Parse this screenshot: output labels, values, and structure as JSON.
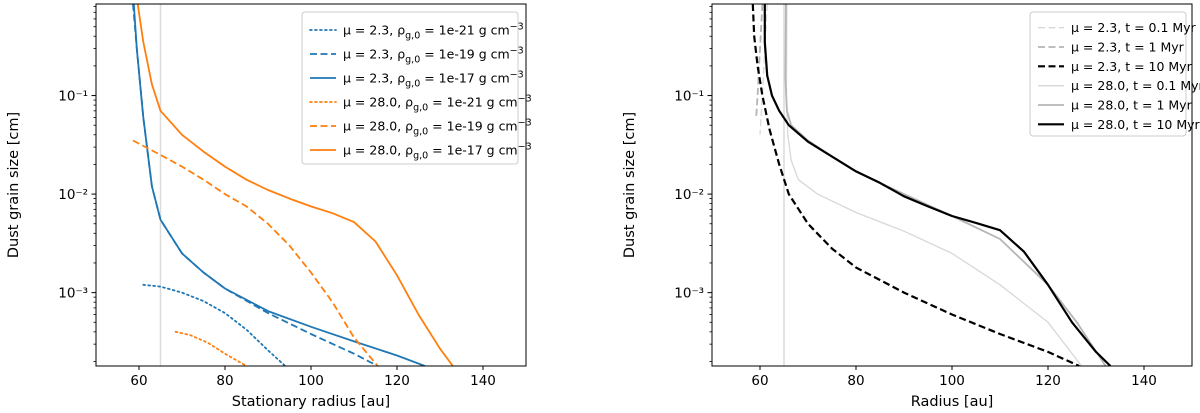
{
  "chart_data": [
    {
      "type": "line",
      "id": "left",
      "xlabel": "Stationary radius [au]",
      "ylabel": "Dust grain size [cm]",
      "xlim": [
        50,
        150
      ],
      "ylim": [
        0.00018,
        0.85
      ],
      "yscale": "log",
      "xticks": [
        60,
        80,
        100,
        120,
        140
      ],
      "xtick_labels": [
        "60",
        "80",
        "100",
        "120",
        "140"
      ],
      "yticks": [
        0.001,
        0.01,
        0.1
      ],
      "ytick_labels": [
        "10⁻³",
        "10⁻²",
        "10⁻¹"
      ],
      "vline": {
        "x": 65,
        "color": "#dcdcdc"
      },
      "legend_position": "top-right",
      "series": [
        {
          "name": "μ = 2.3, ρg,0 = 1e-21 g cm⁻³",
          "color": "#1f77b4",
          "dash": "dotted",
          "width": 1.8,
          "x": [
            61,
            65,
            70,
            75,
            80,
            85,
            90,
            94
          ],
          "y": [
            0.0012,
            0.00115,
            0.001,
            0.00082,
            0.00062,
            0.00042,
            0.00026,
            0.00018
          ]
        },
        {
          "name": "μ = 2.3, ρg,0 = 1e-19 g cm⁻³",
          "color": "#1f77b4",
          "dash": "dashed",
          "width": 1.8,
          "x": [
            58.6,
            59.5,
            61,
            63,
            65,
            70,
            75,
            80,
            90,
            100,
            110,
            115.5
          ],
          "y": [
            0.85,
            0.3,
            0.06,
            0.012,
            0.0055,
            0.0025,
            0.0016,
            0.0011,
            0.00062,
            0.00038,
            0.00024,
            0.00018
          ]
        },
        {
          "name": "μ = 2.3, ρg,0 = 1e-17 g cm⁻³",
          "color": "#1f77b4",
          "dash": "solid",
          "width": 1.8,
          "x": [
            58.8,
            59.5,
            61,
            63,
            65,
            70,
            75,
            80,
            90,
            100,
            110,
            120,
            126.5
          ],
          "y": [
            0.85,
            0.3,
            0.06,
            0.012,
            0.0055,
            0.0025,
            0.0016,
            0.0011,
            0.00065,
            0.00045,
            0.00032,
            0.00023,
            0.00018
          ]
        },
        {
          "name": "μ = 28.0, ρg,0 = 1e-21 g cm⁻³",
          "color": "#ff7f0e",
          "dash": "dotted",
          "width": 1.8,
          "x": [
            68.5,
            72,
            76,
            80,
            85
          ],
          "y": [
            0.0004,
            0.00037,
            0.00031,
            0.00024,
            0.00018
          ]
        },
        {
          "name": "μ = 28.0, ρg,0 = 1e-19 g cm⁻³",
          "color": "#ff7f0e",
          "dash": "dashed",
          "width": 1.8,
          "x": [
            58.6,
            65,
            70,
            75,
            80,
            85,
            90,
            95,
            100,
            105,
            110,
            115.5
          ],
          "y": [
            0.035,
            0.025,
            0.019,
            0.014,
            0.01,
            0.0075,
            0.005,
            0.003,
            0.0016,
            0.0008,
            0.00035,
            0.00018
          ]
        },
        {
          "name": "μ = 28.0, ρg,0 = 1e-17 g cm⁻³",
          "color": "#ff7f0e",
          "dash": "solid",
          "width": 1.8,
          "x": [
            59.7,
            61,
            63,
            65,
            70,
            75,
            80,
            85,
            90,
            95,
            100,
            105,
            110,
            115,
            120,
            125,
            130,
            133
          ],
          "y": [
            0.85,
            0.35,
            0.13,
            0.07,
            0.04,
            0.027,
            0.019,
            0.014,
            0.011,
            0.009,
            0.0075,
            0.0064,
            0.0052,
            0.0033,
            0.0015,
            0.0006,
            0.00027,
            0.00018
          ]
        }
      ]
    },
    {
      "type": "line",
      "id": "right",
      "xlabel": "Radius [au]",
      "ylabel": "Dust grain size [cm]",
      "xlim": [
        50,
        150
      ],
      "ylim": [
        0.00018,
        0.85
      ],
      "yscale": "log",
      "xticks": [
        60,
        80,
        100,
        120,
        140
      ],
      "xtick_labels": [
        "60",
        "80",
        "100",
        "120",
        "140"
      ],
      "yticks": [
        0.001,
        0.01,
        0.1
      ],
      "ytick_labels": [
        "10⁻³",
        "10⁻²",
        "10⁻¹"
      ],
      "vline": {
        "x": 65,
        "color": "#dcdcdc"
      },
      "legend_position": "top-right",
      "series": [
        {
          "name": "μ = 2.3, t = 0.1 Myr",
          "color": "#d8d8d8",
          "dash": "dashed",
          "width": 1.3,
          "x": [
            61.5,
            61,
            60.5,
            60.2,
            60
          ],
          "y": [
            0.85,
            0.3,
            0.1,
            0.06,
            0.04
          ]
        },
        {
          "name": "μ = 2.3, t = 1 Myr",
          "color": "#b5b5b5",
          "dash": "dashed",
          "width": 1.8,
          "x": [
            60.5,
            60,
            59.5,
            59.2
          ],
          "y": [
            0.85,
            0.3,
            0.1,
            0.06
          ]
        },
        {
          "name": "μ = 2.3, t = 10 Myr",
          "color": "#000000",
          "dash": "dashed",
          "width": 2.2,
          "x": [
            58.5,
            58.8,
            59.5,
            60.5,
            62,
            64,
            66,
            70,
            75,
            80,
            90,
            100,
            110,
            120,
            126.5
          ],
          "y": [
            0.85,
            0.4,
            0.2,
            0.1,
            0.045,
            0.02,
            0.01,
            0.005,
            0.0028,
            0.0018,
            0.001,
            0.0006,
            0.00038,
            0.00025,
            0.00018
          ]
        },
        {
          "name": "μ = 28.0, t = 0.1 Myr",
          "color": "#d8d8d8",
          "dash": "solid",
          "width": 1.3,
          "x": [
            65.6,
            65.5,
            65.8,
            66.5,
            68,
            72,
            80,
            90,
            100,
            110,
            120,
            127
          ],
          "y": [
            0.85,
            0.1,
            0.04,
            0.022,
            0.014,
            0.01,
            0.0065,
            0.0042,
            0.0025,
            0.0012,
            0.0005,
            0.00018
          ]
        },
        {
          "name": "μ = 28.0, t = 1 Myr",
          "color": "#b5b5b5",
          "dash": "solid",
          "width": 1.8,
          "x": [
            65.4,
            65.3,
            65.6,
            66.5,
            70,
            75,
            80,
            90,
            100,
            110,
            120,
            126,
            132
          ],
          "y": [
            0.85,
            0.15,
            0.07,
            0.05,
            0.035,
            0.024,
            0.017,
            0.01,
            0.006,
            0.0035,
            0.0012,
            0.0005,
            0.00018
          ]
        },
        {
          "name": "μ = 28.0, t = 10 Myr",
          "color": "#000000",
          "dash": "solid",
          "width": 2.2,
          "x": [
            61,
            61,
            61.5,
            62.5,
            64,
            66,
            70,
            75,
            80,
            85,
            90,
            95,
            100,
            105,
            110,
            115,
            120,
            125,
            130,
            133
          ],
          "y": [
            0.85,
            0.35,
            0.16,
            0.1,
            0.07,
            0.05,
            0.034,
            0.024,
            0.017,
            0.013,
            0.0095,
            0.0075,
            0.006,
            0.0051,
            0.0043,
            0.0026,
            0.0012,
            0.0005,
            0.00025,
            0.00018
          ]
        }
      ]
    }
  ]
}
